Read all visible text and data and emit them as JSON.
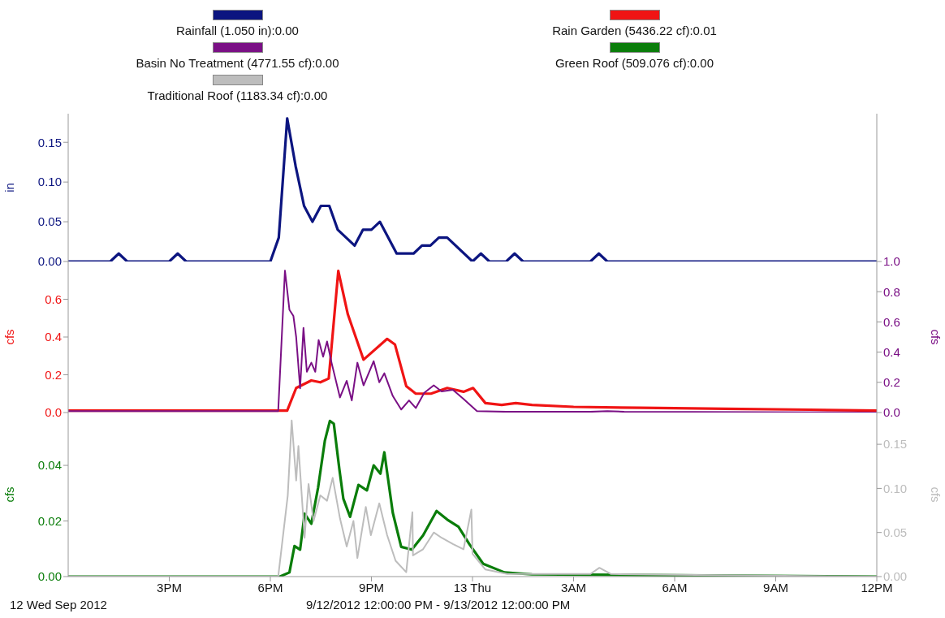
{
  "chart_data": [
    {
      "type": "line",
      "ylabel": "in",
      "legend": "top",
      "tick_labels": "y",
      "xlim": [
        "2012-09-12T12:00",
        "2012-09-13T12:00"
      ],
      "xticks": [
        {
          "value": "2012-09-12T15:00",
          "label": null
        },
        {
          "value": "2012-09-12T18:00",
          "label": null
        },
        {
          "value": "2012-09-12T21:00",
          "label": null
        },
        {
          "value": "2012-09-13T00:00",
          "label": null
        },
        {
          "value": "2012-09-13T03:00",
          "label": null
        },
        {
          "value": "2012-09-13T06:00",
          "label": null
        },
        {
          "value": "2012-09-13T09:00",
          "label": null
        },
        {
          "value": "2012-09-13T12:00",
          "label": null
        }
      ],
      "ylim": [
        0,
        0.186
      ],
      "yticks": [
        {
          "value": 0,
          "label": "0.00"
        },
        {
          "value": 0.05,
          "label": "0.05"
        },
        {
          "value": 0.1,
          "label": "0.10"
        },
        {
          "value": 0.15,
          "label": "0.15"
        }
      ],
      "series": [
        {
          "name": "Rainfall (1.050 in):0.00",
          "color": "#0c1580",
          "x": [
            "2012-09-12T12:00",
            "2012-09-12T13:15",
            "2012-09-12T13:30",
            "2012-09-12T13:45",
            "2012-09-12T15:00",
            "2012-09-12T15:15",
            "2012-09-12T15:30",
            "2012-09-12T18:00",
            "2012-09-12T18:15",
            "2012-09-12T18:30",
            "2012-09-12T18:45",
            "2012-09-12T19:00",
            "2012-09-12T19:15",
            "2012-09-12T19:30",
            "2012-09-12T19:45",
            "2012-09-12T20:00",
            "2012-09-12T20:30",
            "2012-09-12T20:45",
            "2012-09-12T21:00",
            "2012-09-12T21:15",
            "2012-09-12T21:45",
            "2012-09-12T22:15",
            "2012-09-12T22:30",
            "2012-09-12T22:45",
            "2012-09-12T23:00",
            "2012-09-12T23:15",
            "2012-09-13T00:00",
            "2012-09-13T00:15",
            "2012-09-13T00:30",
            "2012-09-13T01:00",
            "2012-09-13T01:15",
            "2012-09-13T01:30",
            "2012-09-13T03:30",
            "2012-09-13T03:45",
            "2012-09-13T04:00",
            "2012-09-13T12:00"
          ],
          "values": [
            0,
            0,
            0.01,
            0,
            0,
            0.01,
            0,
            0,
            0.03,
            0.18,
            0.12,
            0.07,
            0.05,
            0.07,
            0.07,
            0.04,
            0.02,
            0.04,
            0.04,
            0.05,
            0.01,
            0.01,
            0.02,
            0.02,
            0.03,
            0.03,
            0,
            0.01,
            0,
            0,
            0.01,
            0,
            0,
            0.01,
            0,
            0
          ]
        }
      ]
    },
    {
      "type": "line",
      "ylabel": "cfs",
      "y2label": "cfs",
      "legend": "top",
      "tick_labels": "y",
      "xlim": [
        "2012-09-12T12:00",
        "2012-09-13T12:00"
      ],
      "xticks": [
        {
          "value": "2012-09-12T15:00",
          "label": null
        },
        {
          "value": "2012-09-12T18:00",
          "label": null
        },
        {
          "value": "2012-09-12T21:00",
          "label": null
        },
        {
          "value": "2012-09-13T00:00",
          "label": null
        },
        {
          "value": "2012-09-13T03:00",
          "label": null
        },
        {
          "value": "2012-09-13T06:00",
          "label": null
        },
        {
          "value": "2012-09-13T09:00",
          "label": null
        },
        {
          "value": "2012-09-13T12:00",
          "label": null
        }
      ],
      "ylim": [
        0,
        0.8
      ],
      "yticks": [
        {
          "value": 0,
          "label": "0.0"
        },
        0.2,
        0.4,
        0.6
      ],
      "y2lim": [
        0,
        1
      ],
      "y2ticks": [
        {
          "value": 0,
          "label": "0.0"
        },
        0.2,
        0.4,
        0.6,
        0.8,
        {
          "value": 1,
          "label": "1.0"
        }
      ],
      "series": [
        {
          "name": "Rain Garden (5436.22 cf):0.01",
          "color": "#f01414",
          "x": [
            "2012-09-12T12:00",
            "2012-09-12T18:30",
            "2012-09-12T18:46",
            "2012-09-12T19:13",
            "2012-09-12T19:29",
            "2012-09-12T19:44",
            "2012-09-12T20:01",
            "2012-09-12T20:18",
            "2012-09-12T20:46",
            "2012-09-12T21:28",
            "2012-09-12T21:42",
            "2012-09-12T22:02",
            "2012-09-12T22:19",
            "2012-09-12T22:46",
            "2012-09-12T23:15",
            "2012-09-12T23:44",
            "2012-09-13T00:01",
            "2012-09-13T00:23",
            "2012-09-13T00:52",
            "2012-09-13T01:17",
            "2012-09-13T01:46",
            "2012-09-13T03:00",
            "2012-09-13T05:00",
            "2012-09-13T07:30",
            "2012-09-13T10:00",
            "2012-09-13T12:00"
          ],
          "values": [
            0.01,
            0.01,
            0.13,
            0.17,
            0.16,
            0.18,
            0.75,
            0.52,
            0.28,
            0.39,
            0.36,
            0.14,
            0.1,
            0.1,
            0.13,
            0.11,
            0.13,
            0.05,
            0.04,
            0.05,
            0.04,
            0.03,
            0.025,
            0.02,
            0.015,
            0.01
          ]
        },
        {
          "name": "Basin No Treatment (4771.55 cf):0.00",
          "color": "#7a1085",
          "axis": "y2",
          "x": [
            "2012-09-12T12:00",
            "2012-09-12T18:14",
            "2012-09-12T18:26",
            "2012-09-12T18:34",
            "2012-09-12T18:41",
            "2012-09-12T18:46",
            "2012-09-12T18:53",
            "2012-09-12T18:59",
            "2012-09-12T19:05",
            "2012-09-12T19:13",
            "2012-09-12T19:20",
            "2012-09-12T19:26",
            "2012-09-12T19:34",
            "2012-09-12T19:41",
            "2012-09-12T19:49",
            "2012-09-12T20:04",
            "2012-09-12T20:16",
            "2012-09-12T20:25",
            "2012-09-12T20:35",
            "2012-09-12T20:46",
            "2012-09-12T21:04",
            "2012-09-12T21:14",
            "2012-09-12T21:23",
            "2012-09-12T21:38",
            "2012-09-12T21:53",
            "2012-09-12T22:07",
            "2012-09-12T22:19",
            "2012-09-12T22:34",
            "2012-09-12T22:51",
            "2012-09-12T23:05",
            "2012-09-12T23:25",
            "2012-09-12T23:44",
            "2012-09-13T00:08",
            "2012-09-13T01:00",
            "2012-09-13T03:30",
            "2012-09-13T04:00",
            "2012-09-13T04:30",
            "2012-09-13T12:00"
          ],
          "values": [
            0.01,
            0.01,
            0.94,
            0.68,
            0.64,
            0.5,
            0.16,
            0.56,
            0.27,
            0.33,
            0.27,
            0.48,
            0.37,
            0.47,
            0.33,
            0.1,
            0.21,
            0.08,
            0.33,
            0.18,
            0.34,
            0.2,
            0.26,
            0.11,
            0.02,
            0.08,
            0.03,
            0.13,
            0.18,
            0.14,
            0.15,
            0.09,
            0.01,
            0.005,
            0.005,
            0.01,
            0.005,
            0
          ]
        }
      ]
    },
    {
      "type": "line",
      "ylabel": "cfs",
      "y2label": "cfs",
      "legend": "top",
      "xlim": [
        "2012-09-12T12:00",
        "2012-09-13T12:00"
      ],
      "xticks": [
        {
          "value": "2012-09-12T15:00",
          "label": "3PM"
        },
        {
          "value": "2012-09-12T18:00",
          "label": "6PM"
        },
        {
          "value": "2012-09-12T21:00",
          "label": "9PM"
        },
        {
          "value": "2012-09-13T00:00",
          "label": "13 Thu"
        },
        {
          "value": "2012-09-13T03:00",
          "label": "3AM"
        },
        {
          "value": "2012-09-13T06:00",
          "label": "6AM"
        },
        {
          "value": "2012-09-13T09:00",
          "label": "9AM"
        },
        {
          "value": "2012-09-13T12:00",
          "label": "12PM"
        }
      ],
      "ylim": [
        0,
        0.059
      ],
      "yticks": [
        {
          "value": 0,
          "label": "0.00"
        },
        {
          "value": 0.02,
          "label": "0.02"
        },
        {
          "value": 0.04,
          "label": "0.04"
        }
      ],
      "y2lim": [
        0,
        0.186
      ],
      "y2ticks": [
        {
          "value": 0,
          "label": "0.00"
        },
        {
          "value": 0.05,
          "label": "0.05"
        },
        {
          "value": 0.1,
          "label": "0.10"
        },
        {
          "value": 0.15,
          "label": "0.15"
        }
      ],
      "annotations": [
        "12 Wed Sep 2012",
        "9/12/2012 12:00:00 PM - 9/13/2012 12:00:00 PM"
      ],
      "series": [
        {
          "name": "Green Roof (509.076 cf):0.00",
          "color": "#0a7d0a",
          "x": [
            "2012-09-12T12:00",
            "2012-09-12T18:17",
            "2012-09-12T18:34",
            "2012-09-12T18:43",
            "2012-09-12T18:53",
            "2012-09-12T19:01",
            "2012-09-12T19:13",
            "2012-09-12T19:25",
            "2012-09-12T19:37",
            "2012-09-12T19:46",
            "2012-09-12T19:53",
            "2012-09-12T20:03",
            "2012-09-12T20:10",
            "2012-09-12T20:22",
            "2012-09-12T20:37",
            "2012-09-12T20:52",
            "2012-09-12T21:04",
            "2012-09-12T21:16",
            "2012-09-12T21:23",
            "2012-09-12T21:38",
            "2012-09-12T21:53",
            "2012-09-12T22:12",
            "2012-09-12T22:32",
            "2012-09-12T22:56",
            "2012-09-12T23:15",
            "2012-09-12T23:35",
            "2012-09-12T23:54",
            "2012-09-13T00:19",
            "2012-09-13T00:57",
            "2012-09-13T01:46",
            "2012-09-13T06:00",
            "2012-09-13T12:00"
          ],
          "values": [
            0,
            0,
            0.0015,
            0.011,
            0.0097,
            0.0226,
            0.019,
            0.032,
            0.0488,
            0.056,
            0.055,
            0.0385,
            0.028,
            0.0215,
            0.033,
            0.031,
            0.04,
            0.037,
            0.0447,
            0.023,
            0.0107,
            0.0097,
            0.0148,
            0.0236,
            0.0205,
            0.0179,
            0.0118,
            0.0046,
            0.0015,
            0.0008,
            0.0005,
            0
          ]
        },
        {
          "name": "Traditional Roof (1183.34 cf):0.00",
          "color": "#bdbdbd",
          "axis": "y2",
          "x": [
            "2012-09-12T12:00",
            "2012-09-12T18:14",
            "2012-09-12T18:31",
            "2012-09-12T18:38",
            "2012-09-12T18:46",
            "2012-09-12T18:50",
            "2012-09-12T19:01",
            "2012-09-12T19:08",
            "2012-09-12T19:17",
            "2012-09-12T19:29",
            "2012-09-12T19:41",
            "2012-09-12T19:51",
            "2012-09-12T20:04",
            "2012-09-12T20:16",
            "2012-09-12T20:28",
            "2012-09-12T20:35",
            "2012-09-12T20:50",
            "2012-09-12T20:59",
            "2012-09-12T21:14",
            "2012-09-12T21:28",
            "2012-09-12T21:43",
            "2012-09-12T22:02",
            "2012-09-12T22:13",
            "2012-09-12T22:14",
            "2012-09-12T22:32",
            "2012-09-12T22:51",
            "2012-09-12T23:05",
            "2012-09-12T23:25",
            "2012-09-12T23:44",
            "2012-09-12T23:58",
            "2012-09-13T00:00",
            "2012-09-13T00:23",
            "2012-09-13T01:02",
            "2012-09-13T03:30",
            "2012-09-13T03:46",
            "2012-09-13T04:06",
            "2012-09-13T06:00",
            "2012-09-13T12:00"
          ],
          "values": [
            0,
            0,
            0.092,
            0.177,
            0.109,
            0.148,
            0.044,
            0.105,
            0.063,
            0.092,
            0.086,
            0.112,
            0.066,
            0.034,
            0.063,
            0.021,
            0.079,
            0.047,
            0.083,
            0.047,
            0.018,
            0.005,
            0.073,
            0.024,
            0.031,
            0.05,
            0.044,
            0.037,
            0.031,
            0.076,
            0.026,
            0.008,
            0.003,
            0.003,
            0.01,
            0.003,
            0.002,
            0
          ]
        }
      ]
    }
  ]
}
